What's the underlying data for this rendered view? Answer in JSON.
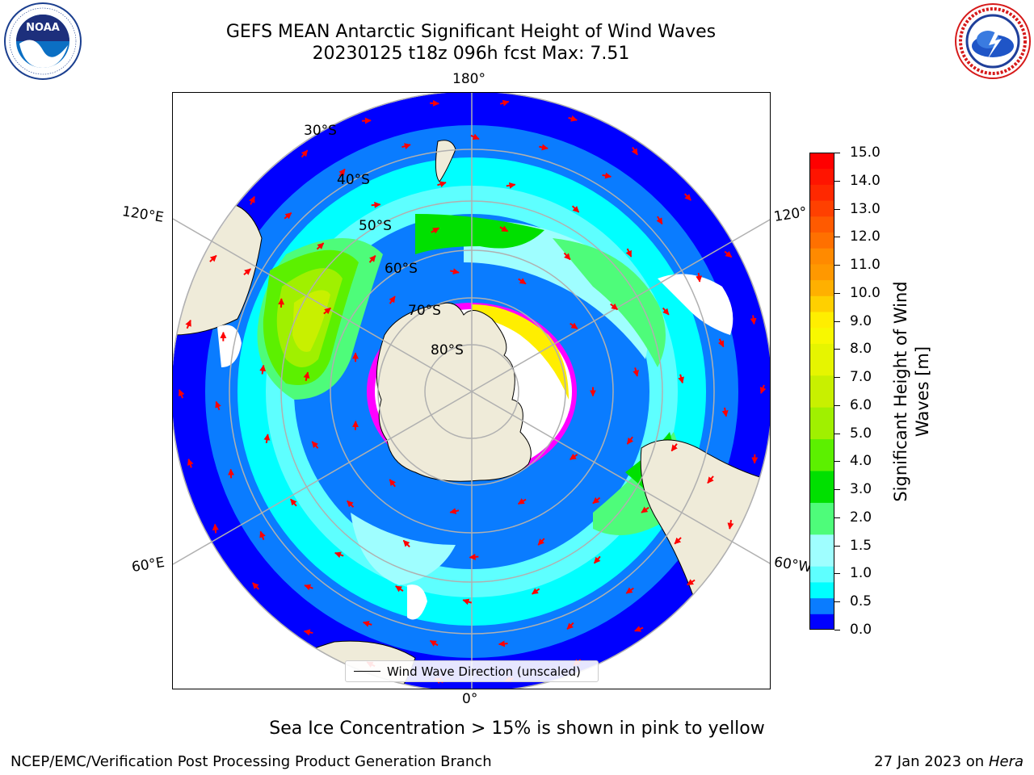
{
  "header": {
    "title_line1": "GEFS MEAN Antarctic Significant Height of Wind Waves",
    "title_line2": "20230125 t18z 096h fcst   Max: 7.51"
  },
  "logos": {
    "left": {
      "name": "NOAA",
      "ring_text": "NATIONAL OCEANIC AND ATMOSPHERIC ADMINISTRATION · U.S. DEPARTMENT OF COMMERCE"
    },
    "right": {
      "name": "NATIONAL WEATHER SERVICE"
    }
  },
  "map": {
    "projection": "south-polar-stereographic",
    "longitude_labels": {
      "top": "180°",
      "bottom": "0°",
      "upper_left": "120°E",
      "upper_right": "120°",
      "lower_left": "60°E",
      "lower_right": "60°W"
    },
    "latitude_labels": [
      "30°S",
      "40°S",
      "50°S",
      "60°S",
      "70°S",
      "80°S"
    ],
    "legend": {
      "label": "Wind Wave Direction (unscaled)"
    },
    "colors": {
      "land": "#efebd9",
      "coastline": "#000000",
      "gridline": "#b0b0b0",
      "arrow": "#ff0000",
      "ice_low": "#ff00ff",
      "ice_high": "#ffff00"
    }
  },
  "colorbar": {
    "label": "Significant Height of Wind Waves [m]",
    "ticks": [
      "0.0",
      "0.5",
      "1.0",
      "1.5",
      "2.0",
      "3.0",
      "4.0",
      "5.0",
      "6.0",
      "7.0",
      "8.0",
      "9.0",
      "10.0",
      "11.0",
      "12.0",
      "13.0",
      "14.0",
      "15.0"
    ],
    "levels": [
      0,
      0.5,
      1.0,
      1.5,
      2.0,
      2.5,
      3.0,
      3.5,
      4.0,
      4.5,
      5.0,
      5.5,
      6.0,
      6.5,
      7.0,
      7.5,
      8.0,
      8.5,
      9.0,
      9.5,
      10.0,
      10.5,
      11.0,
      11.5,
      12.0,
      12.5,
      13.0,
      13.5,
      14.0,
      14.5,
      15.0
    ],
    "colors": [
      "#0000ff",
      "#0a7cff",
      "#00ffff",
      "#5effff",
      "#9ffeff",
      "#9ffeff",
      "#4efc7a",
      "#4efc7a",
      "#00e000",
      "#00e000",
      "#5cf000",
      "#5cf000",
      "#a0f000",
      "#a0f000",
      "#c8f000",
      "#c8f000",
      "#e6f500",
      "#e6f500",
      "#f8f800",
      "#ffee00",
      "#ffd000",
      "#ffb000",
      "#ff9800",
      "#ff8a00",
      "#ff7000",
      "#ff5a00",
      "#ff4000",
      "#ff2800",
      "#ff1400",
      "#ff0000"
    ]
  },
  "footer": {
    "note": "Sea Ice Concentration > 15% is shown in pink to yellow",
    "left": "NCEP/EMC/Verification Post Processing Product Generation Branch",
    "right_date": "27 Jan 2023 on",
    "right_host": "Hera"
  }
}
